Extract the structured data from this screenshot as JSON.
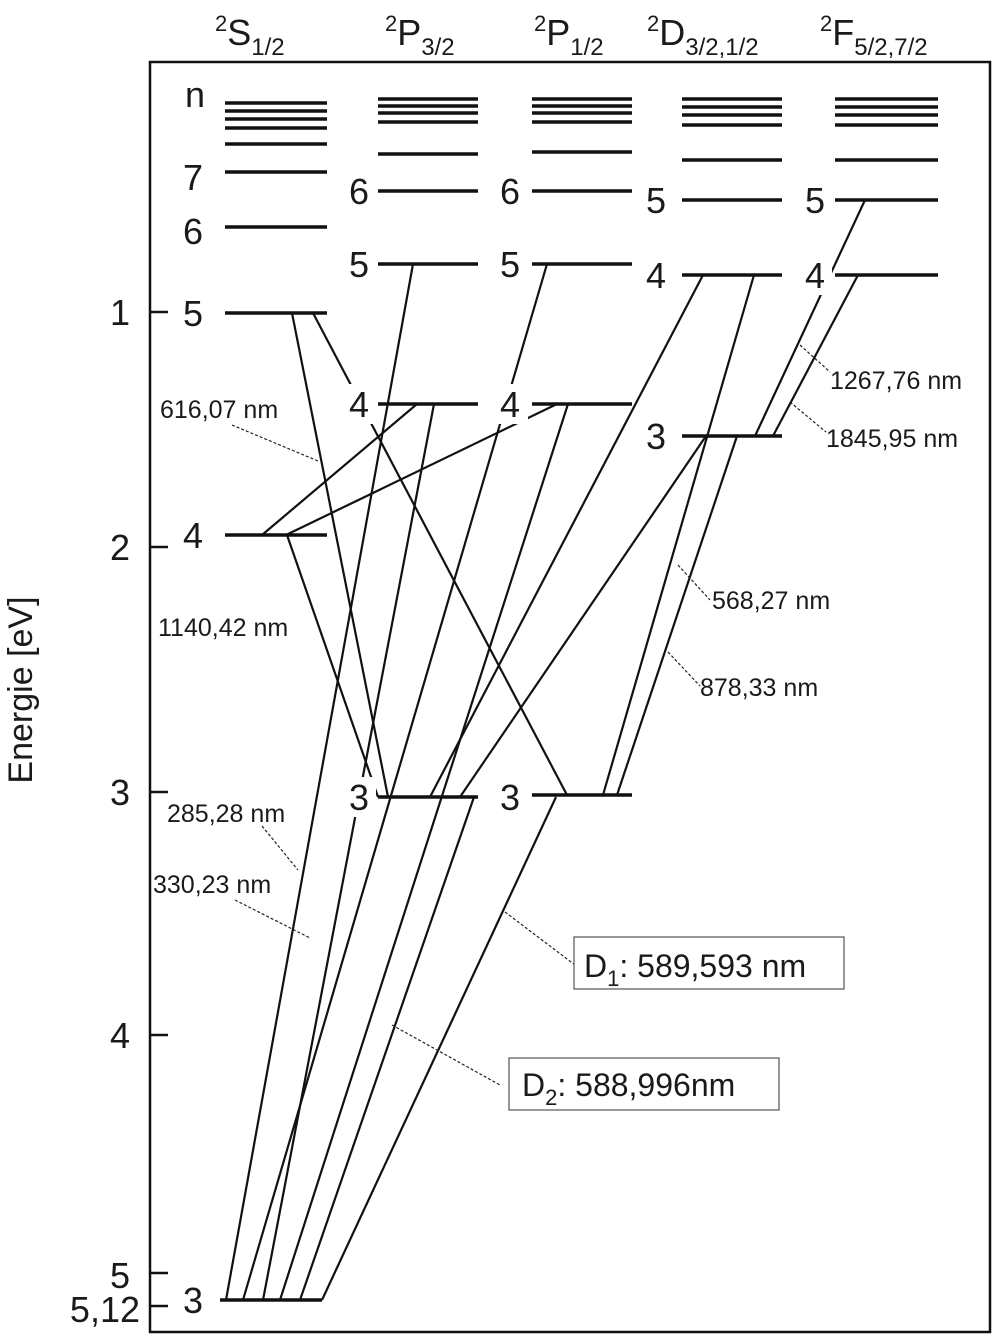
{
  "diagram": {
    "y_axis_label": "Energie [eV]",
    "y_ticks": [
      "1",
      "2",
      "3",
      "4",
      "5",
      "5,12"
    ],
    "n_header": "n",
    "columns": [
      {
        "id": "S",
        "sup": "2",
        "letter": "S",
        "sub": "1/2"
      },
      {
        "id": "P32",
        "sup": "2",
        "letter": "P",
        "sub": "3/2"
      },
      {
        "id": "P12",
        "sup": "2",
        "letter": "P",
        "sub": "1/2"
      },
      {
        "id": "D",
        "sup": "2",
        "letter": "D",
        "sub": "3/2,1/2"
      },
      {
        "id": "F",
        "sup": "2",
        "letter": "F",
        "sub": "5/2,7/2"
      }
    ],
    "level_labels": {
      "S": [
        "3",
        "4",
        "5",
        "6",
        "7"
      ],
      "P32": [
        "3",
        "4",
        "5",
        "6"
      ],
      "P12": [
        "3",
        "4",
        "5",
        "6"
      ],
      "D": [
        "3",
        "4",
        "5"
      ],
      "F": [
        "4",
        "5"
      ]
    },
    "wavelength_labels": [
      "616,07 nm",
      "1140,42 nm",
      "285,28 nm",
      "330,23 nm",
      "1267,76 nm",
      "1845,95 nm",
      "568,27 nm",
      "878,33 nm"
    ],
    "d_lines": [
      {
        "main": "D",
        "sub": "1",
        "rest": ": 589,593 nm"
      },
      {
        "main": "D",
        "sub": "2",
        "rest": ": 588,996nm"
      }
    ]
  }
}
